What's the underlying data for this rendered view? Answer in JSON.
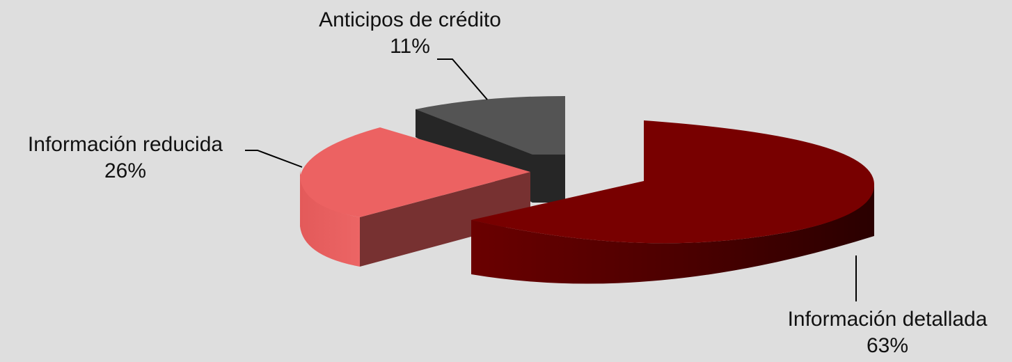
{
  "chart_data": {
    "type": "pie",
    "style": "3d-exploded",
    "slices": [
      {
        "label": "Información detallada",
        "value": 63,
        "display": "63%",
        "color": "#780000"
      },
      {
        "label": "Información reducida",
        "value": 26,
        "display": "26%",
        "color": "#ec6262"
      },
      {
        "label": "Anticipos de crédito",
        "value": 11,
        "display": "11%",
        "color": "#545454"
      }
    ]
  }
}
